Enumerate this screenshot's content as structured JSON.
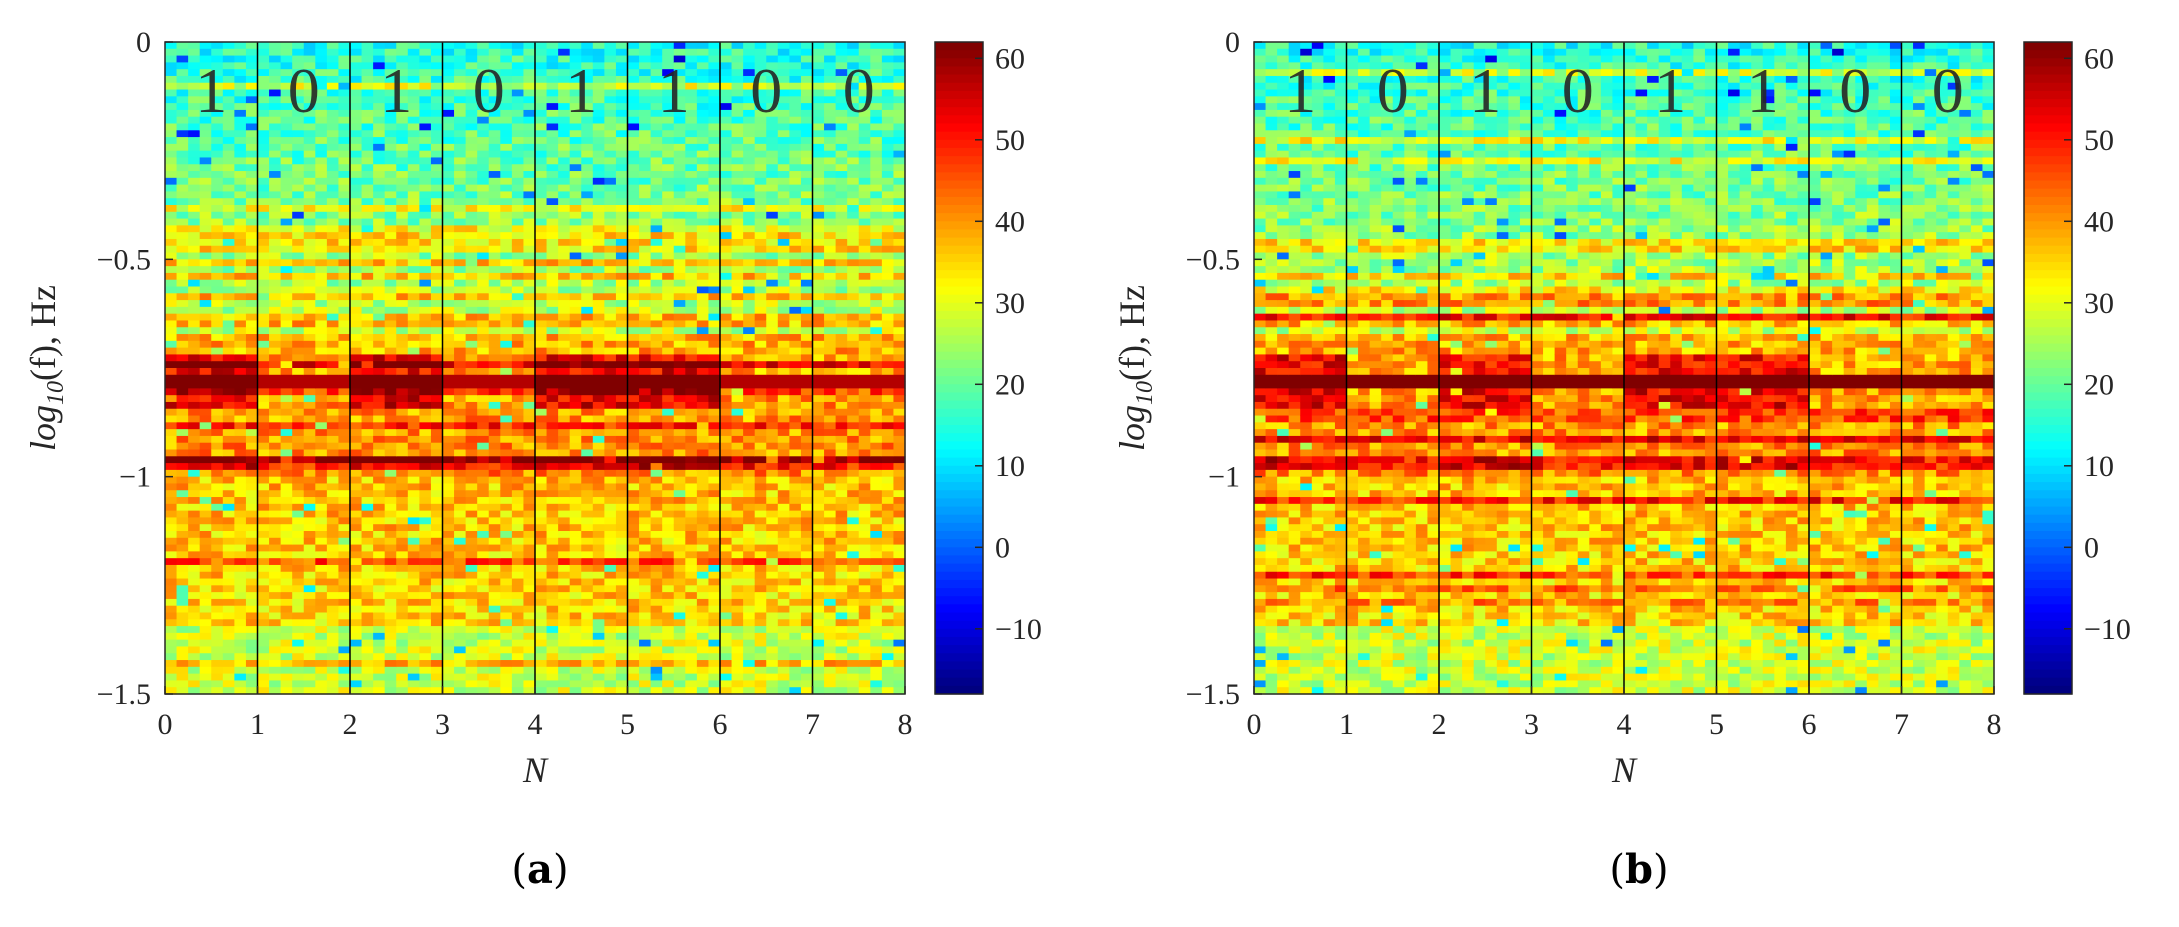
{
  "chart_data": [
    {
      "type": "heatmap",
      "caption": "(a)",
      "caption_letter": "a",
      "xlabel": "N",
      "ylabel": "log10(f), Hz",
      "ylabel_parts": {
        "base": "log",
        "sub": "10",
        "rest": "(f), Hz"
      },
      "xlim": [
        0,
        8
      ],
      "ylim": [
        -1.5,
        0
      ],
      "x_ticks": [
        "0",
        "1",
        "2",
        "3",
        "4",
        "5",
        "6",
        "7",
        "8"
      ],
      "y_ticks": [
        "0",
        "−0.5",
        "−1",
        "−1.5"
      ],
      "y_tick_values": [
        0,
        -0.5,
        -1,
        -1.5
      ],
      "segments": [
        0,
        1,
        2,
        3,
        4,
        5,
        6,
        7,
        8
      ],
      "bits": [
        "1",
        "0",
        "1",
        "0",
        "1",
        "1",
        "0",
        "0"
      ],
      "colorbar": {
        "range": [
          -18,
          62
        ],
        "ticks": [
          "60",
          "50",
          "40",
          "30",
          "20",
          "10",
          "0",
          "−10"
        ],
        "tick_values": [
          60,
          50,
          40,
          30,
          20,
          10,
          0,
          -10
        ],
        "colormap": "jet"
      },
      "strong_line_freq": -0.78,
      "strong_line_level_bit1": 62,
      "strong_line_level_bit0": 58
    },
    {
      "type": "heatmap",
      "caption": "(b)",
      "caption_letter": "b",
      "xlabel": "N",
      "ylabel": "log10(f), Hz",
      "ylabel_parts": {
        "base": "log",
        "sub": "10",
        "rest": "(f), Hz"
      },
      "xlim": [
        0,
        8
      ],
      "ylim": [
        -1.5,
        0
      ],
      "x_ticks": [
        "0",
        "1",
        "2",
        "3",
        "4",
        "5",
        "6",
        "7",
        "8"
      ],
      "y_ticks": [
        "0",
        "−0.5",
        "−1",
        "−1.5"
      ],
      "y_tick_values": [
        0,
        -0.5,
        -1,
        -1.5
      ],
      "segments": [
        0,
        1,
        2,
        3,
        4,
        5,
        6,
        7,
        8
      ],
      "bits": [
        "1",
        "0",
        "1",
        "0",
        "1",
        "1",
        "0",
        "0"
      ],
      "colorbar": {
        "range": [
          -18,
          62
        ],
        "ticks": [
          "60",
          "50",
          "40",
          "30",
          "20",
          "10",
          "0",
          "−10"
        ],
        "tick_values": [
          60,
          50,
          40,
          30,
          20,
          10,
          0,
          -10
        ],
        "colormap": "jet"
      },
      "strong_line_freq": -0.78,
      "strong_line_level_bit1": 62,
      "strong_line_level_bit0": 62
    }
  ]
}
